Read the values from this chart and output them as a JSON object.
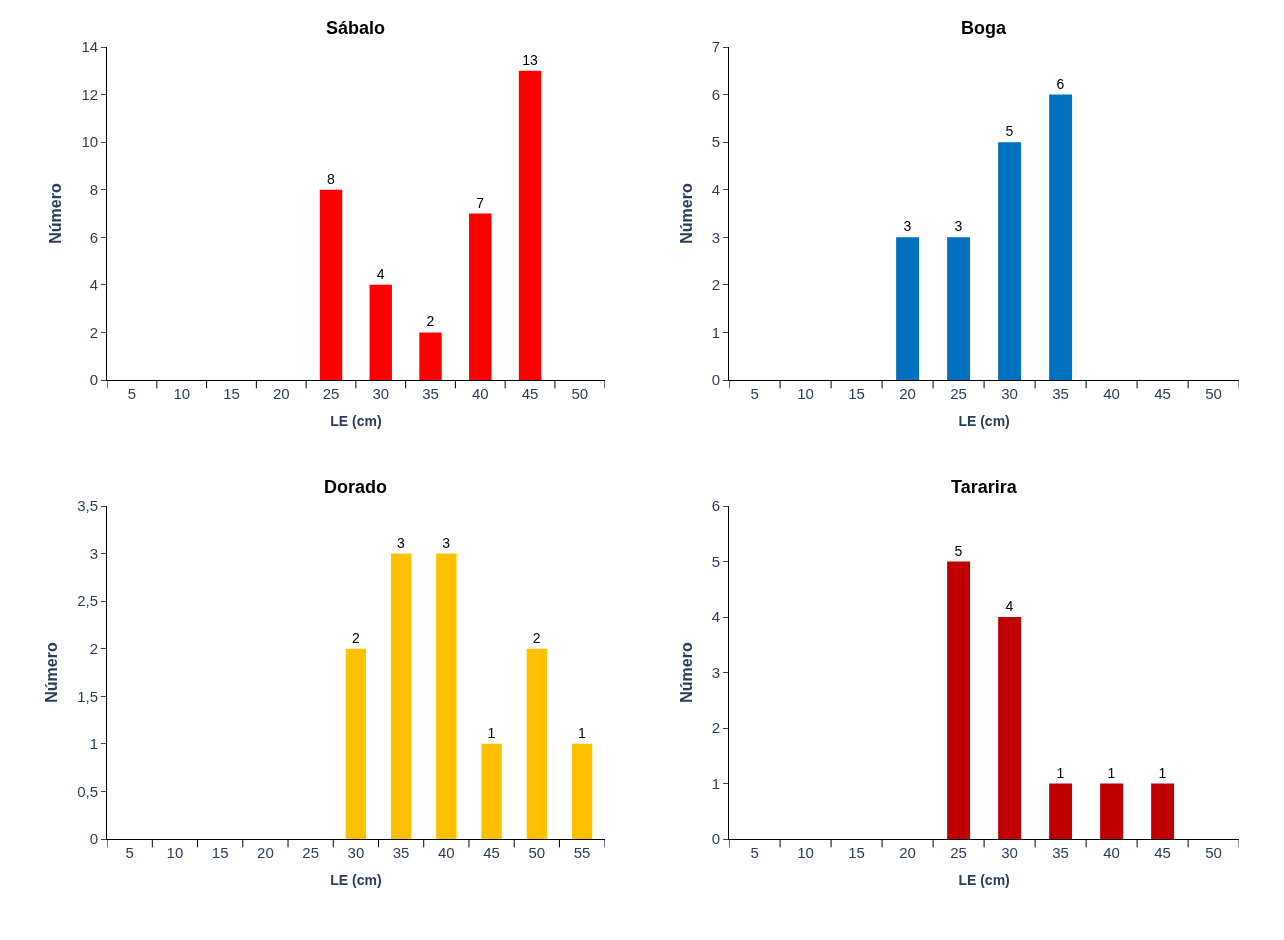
{
  "chart_data": [
    {
      "type": "bar",
      "title": "Sábalo",
      "xlabel": "LE (cm)",
      "ylabel": "Número",
      "categories": [
        "5",
        "10",
        "15",
        "20",
        "25",
        "30",
        "35",
        "40",
        "45",
        "50"
      ],
      "values": [
        0,
        0,
        0,
        0,
        8,
        4,
        2,
        7,
        13,
        0
      ],
      "value_labels": [
        null,
        null,
        null,
        null,
        "8",
        "4",
        "2",
        "7",
        "13",
        null
      ],
      "color": "#ff0000",
      "ylim": [
        0,
        14
      ],
      "yticks": [
        0,
        2,
        4,
        6,
        8,
        10,
        12,
        14
      ]
    },
    {
      "type": "bar",
      "title": "Boga",
      "xlabel": "LE (cm)",
      "ylabel": "Número",
      "categories": [
        "5",
        "10",
        "15",
        "20",
        "25",
        "30",
        "35",
        "40",
        "45",
        "50"
      ],
      "values": [
        0,
        0,
        0,
        3,
        3,
        5,
        6,
        0,
        0,
        0
      ],
      "value_labels": [
        null,
        null,
        null,
        "3",
        "3",
        "5",
        "6",
        null,
        null,
        null
      ],
      "color": "#0070c0",
      "ylim": [
        0,
        7
      ],
      "yticks": [
        0,
        1,
        2,
        3,
        4,
        5,
        6,
        7
      ]
    },
    {
      "type": "bar",
      "title": "Dorado",
      "xlabel": "LE (cm)",
      "ylabel": "Número",
      "categories": [
        "5",
        "10",
        "15",
        "20",
        "25",
        "30",
        "35",
        "40",
        "45",
        "50",
        "55"
      ],
      "values": [
        0,
        0,
        0,
        0,
        0,
        2,
        3,
        3,
        1,
        2,
        1
      ],
      "value_labels": [
        null,
        null,
        null,
        null,
        null,
        "2",
        "3",
        "3",
        "1",
        "2",
        "1"
      ],
      "color": "#ffc000",
      "ylim": [
        0,
        3.5
      ],
      "yticks": [
        0,
        {
          "value": 0.5,
          "label": "0,5"
        },
        1,
        {
          "value": 1.5,
          "label": "1,5"
        },
        2,
        {
          "value": 2.5,
          "label": "2,5"
        },
        3,
        {
          "value": 3.5,
          "label": "3,5"
        }
      ]
    },
    {
      "type": "bar",
      "title": "Tararira",
      "xlabel": "LE (cm)",
      "ylabel": "Número",
      "categories": [
        "5",
        "10",
        "15",
        "20",
        "25",
        "30",
        "35",
        "40",
        "45",
        "50"
      ],
      "values": [
        0,
        0,
        0,
        0,
        5,
        4,
        1,
        1,
        1,
        0
      ],
      "value_labels": [
        null,
        null,
        null,
        null,
        "5",
        "4",
        "1",
        "1",
        "1",
        null
      ],
      "color": "#c00000",
      "ylim": [
        0,
        6
      ],
      "yticks": [
        0,
        1,
        2,
        3,
        4,
        5,
        6
      ]
    }
  ]
}
